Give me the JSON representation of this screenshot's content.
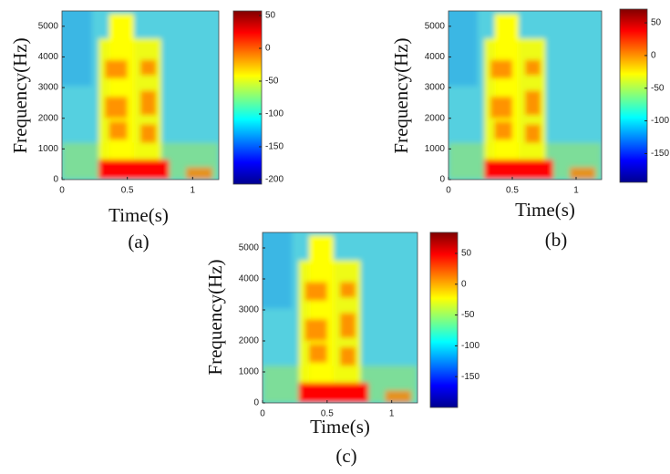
{
  "chart_data": [
    {
      "type": "spectrogram",
      "caption": "(a)",
      "xlabel": "Time(s)",
      "ylabel": "Frequency(Hz)",
      "xlim": [
        0,
        1.2
      ],
      "xticks": [
        0,
        0.5,
        1
      ],
      "ylim": [
        0,
        5500
      ],
      "yticks": [
        0,
        1000,
        2000,
        3000,
        4000,
        5000
      ],
      "colormap": "jet",
      "colorbar": {
        "lim": [
          -207,
          57
        ],
        "ticks": [
          -200,
          -150,
          -100,
          -50,
          0,
          50
        ]
      }
    },
    {
      "type": "spectrogram",
      "caption": "(b)",
      "xlabel": "Time(s)",
      "ylabel": "Frequency(Hz)",
      "xlim": [
        0,
        1.2
      ],
      "xticks": [
        0,
        0.5,
        1
      ],
      "ylim": [
        0,
        5500
      ],
      "yticks": [
        0,
        1000,
        2000,
        3000,
        4000,
        5000
      ],
      "colormap": "jet",
      "colorbar": {
        "lim": [
          -194,
          71
        ],
        "ticks": [
          -150,
          -100,
          -50,
          0,
          50
        ]
      }
    },
    {
      "type": "spectrogram",
      "caption": "(c)",
      "xlabel": "Time(s)",
      "ylabel": "Frequency(Hz)",
      "xlim": [
        0,
        1.2
      ],
      "xticks": [
        0,
        0.5,
        1
      ],
      "ylim": [
        0,
        5500
      ],
      "yticks": [
        0,
        1000,
        2000,
        3000,
        4000,
        5000
      ],
      "colormap": "jet",
      "colorbar": {
        "lim": [
          -200,
          84
        ],
        "ticks": [
          -150,
          -100,
          -50,
          0,
          50
        ]
      }
    }
  ]
}
